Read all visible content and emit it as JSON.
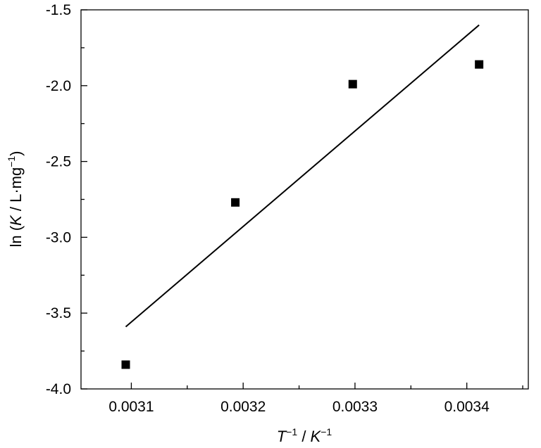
{
  "chart_data": {
    "type": "scatter",
    "title": "",
    "xlabel": {
      "T_base": "T",
      "T_sup": "−1",
      "sep": " / ",
      "K_base": "K",
      "K_sup": "−1"
    },
    "ylabel": {
      "prefix": "ln (",
      "K": "K",
      "mid": " / L·mg",
      "sup": "−1",
      "suffix": ")"
    },
    "xlim": [
      0.003055,
      0.003455
    ],
    "ylim": [
      -4.0,
      -1.5
    ],
    "xticks": [
      0.0031,
      0.0032,
      0.0033,
      0.0034
    ],
    "xtick_labels": [
      "0.0031",
      "0.0032",
      "0.0033",
      "0.0034"
    ],
    "yticks": [
      -4.0,
      -3.5,
      -3.0,
      -2.5,
      -2.0,
      -1.5
    ],
    "ytick_labels": [
      "-4.0",
      "-3.5",
      "-3.0",
      "-2.5",
      "-2.0",
      "-1.5"
    ],
    "grid": false,
    "series": [
      {
        "marker": "square",
        "color": "#000000",
        "x": [
          0.003095,
          0.003193,
          0.003298,
          0.003411
        ],
        "y": [
          -3.84,
          -2.77,
          -1.99,
          -1.86
        ]
      }
    ],
    "fit_line": {
      "color": "#000000",
      "x": [
        0.003095,
        0.003411
      ],
      "y": [
        -3.59,
        -1.6
      ]
    }
  }
}
